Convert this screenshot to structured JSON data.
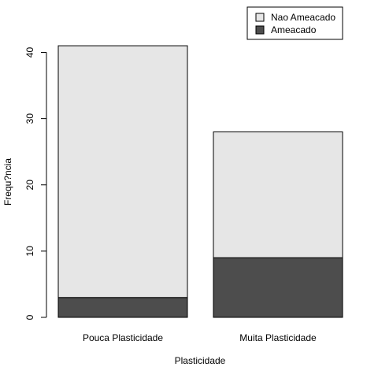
{
  "chart_data": {
    "type": "bar",
    "stacked": true,
    "categories": [
      "Pouca Plasticidade",
      "Muita Plasticidade"
    ],
    "series": [
      {
        "name": "Ameacado",
        "values": [
          3,
          9
        ],
        "color": "#4d4d4d"
      },
      {
        "name": "Nao Ameacado",
        "values": [
          38,
          19
        ],
        "color": "#e6e6e6"
      }
    ],
    "legend_order": [
      "Nao Ameacado",
      "Ameacado"
    ],
    "xlabel": "Plasticidade",
    "ylabel": "Frequ?ncia",
    "ylim": [
      0,
      40
    ],
    "yticks": [
      0,
      10,
      20,
      30,
      40
    ],
    "grid": false,
    "legend_position": "top-right"
  }
}
